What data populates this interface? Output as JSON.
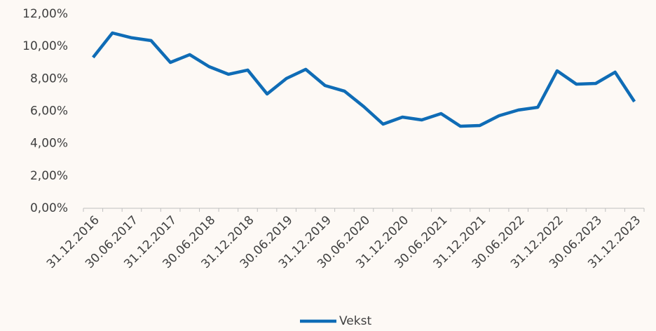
{
  "chart_data": {
    "type": "line",
    "categories": [
      "31.12.2016",
      null,
      "30.06.2017",
      null,
      "31.12.2017",
      null,
      "30.06.2018",
      null,
      "31.12.2018",
      null,
      "30.06.2019",
      null,
      "31.12.2019",
      null,
      "30.06.2020",
      null,
      "31.12.2020",
      null,
      "30.06.2021",
      null,
      "31.12.2021",
      null,
      "30.06.2022",
      null,
      "31.12.2022",
      null,
      "30.06.2023",
      null,
      "31.12.2023"
    ],
    "series": [
      {
        "name": "Vekst",
        "color": "#0f6cb6",
        "values": [
          9.32,
          10.83,
          10.53,
          10.36,
          9.01,
          9.49,
          8.75,
          8.28,
          8.54,
          7.06,
          8.02,
          8.58,
          7.58,
          7.24,
          6.28,
          5.2,
          5.63,
          5.46,
          5.85,
          5.07,
          5.11,
          5.72,
          6.07,
          6.24,
          8.49,
          7.67,
          7.71,
          8.41,
          6.59
        ]
      }
    ],
    "ylim": [
      0,
      12
    ],
    "yticks": [
      {
        "value": 0,
        "label": "0,00%"
      },
      {
        "value": 2,
        "label": "2,00%"
      },
      {
        "value": 4,
        "label": "4,00%"
      },
      {
        "value": 6,
        "label": "6,00%"
      },
      {
        "value": 8,
        "label": "8,00%"
      },
      {
        "value": 10,
        "label": "10,00%"
      },
      {
        "value": 12,
        "label": "12,00%"
      }
    ],
    "grid": false,
    "legend": "bottom"
  }
}
